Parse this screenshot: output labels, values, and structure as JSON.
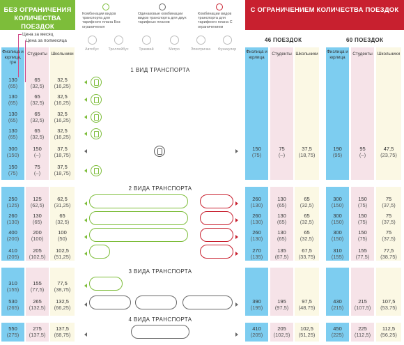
{
  "headers": {
    "unlimited": "БЕЗ ОГРАНИЧЕНИЯ КОЛИЧЕСТВА ПОЕЗДОК",
    "limited": "С ОГРАНИЧЕНИЕМ КОЛИЧЕСТВА ПОЕЗДОК"
  },
  "callouts": {
    "month": "Цена за месяц",
    "half": "Цена за полмесяца"
  },
  "legend": {
    "green": "Комбинации видов транспорта для тарифного плана Без ограничения",
    "gray": "Одинаковые комбинации видов транспорта для двух тарифных планов",
    "red": "Комбинации видов транспорта для тарифного плана С ограничением"
  },
  "modes": [
    "Автобус",
    "Троллейбус",
    "Трамвай",
    "Метро",
    "Электричка",
    "Фуникулер"
  ],
  "columns": {
    "individual": "Физлица и юрлица, грн",
    "individual_short": "Физлица и юрлица",
    "students": "Студенты",
    "pupils": "Школьники"
  },
  "trips": {
    "t46": "46 ПОЕЗДОК",
    "t60": "60 ПОЕЗДОК"
  },
  "sections": {
    "s1": "1 ВИД ТРАНСПОРТА",
    "s2": "2 ВИДА ТРАНСПОРТА",
    "s3": "3 ВИДА ТРАНСПОРТА",
    "s4": "4 ВИДА ТРАНСПОРТА"
  },
  "rows": [
    {
      "left": [
        [
          "130",
          "(65)"
        ],
        [
          "65",
          "(32,5)"
        ],
        [
          "32,5",
          "(16,25)"
        ]
      ]
    },
    {
      "left": [
        [
          "130",
          "(65)"
        ],
        [
          "65",
          "(32,5)"
        ],
        [
          "32,5",
          "(16,25)"
        ]
      ]
    },
    {
      "left": [
        [
          "130",
          "(65)"
        ],
        [
          "65",
          "(32,5)"
        ],
        [
          "32,5",
          "(16,25)"
        ]
      ]
    },
    {
      "left": [
        [
          "130",
          "(65)"
        ],
        [
          "65",
          "(32,5)"
        ],
        [
          "32,5",
          "(16,25)"
        ]
      ]
    },
    {
      "left": [
        [
          "300",
          "(150)"
        ],
        [
          "150",
          "(–)"
        ],
        [
          "37,5",
          "(18,75)"
        ]
      ],
      "r46": [
        [
          "150",
          "(75)"
        ],
        [
          "75",
          "(–)"
        ],
        [
          "37,5",
          "(18,75)"
        ]
      ],
      "r60": [
        [
          "190",
          "(95)"
        ],
        [
          "95",
          "(–)"
        ],
        [
          "47,5",
          "(23,75)"
        ]
      ]
    },
    {
      "left": [
        [
          "150",
          "(75)"
        ],
        [
          "75",
          "(–)"
        ],
        [
          "37,5",
          "(18,75)"
        ]
      ]
    },
    {
      "left": [
        [
          "250",
          "(125)"
        ],
        [
          "125",
          "(62,5)"
        ],
        [
          "62,5",
          "(31,25)"
        ]
      ],
      "r46": [
        [
          "260",
          "(130)"
        ],
        [
          "130",
          "(65)"
        ],
        [
          "65",
          "(32,5)"
        ]
      ],
      "r60": [
        [
          "300",
          "(150)"
        ],
        [
          "150",
          "(75)"
        ],
        [
          "75",
          "(37,5)"
        ]
      ]
    },
    {
      "left": [
        [
          "260",
          "(130)"
        ],
        [
          "130",
          "(65)"
        ],
        [
          "65",
          "(32,5)"
        ]
      ],
      "r46": [
        [
          "260",
          "(130)"
        ],
        [
          "130",
          "(65)"
        ],
        [
          "65",
          "(32,5)"
        ]
      ],
      "r60": [
        [
          "300",
          "(150)"
        ],
        [
          "150",
          "(75)"
        ],
        [
          "75",
          "(37,5)"
        ]
      ]
    },
    {
      "left": [
        [
          "400",
          "(200)"
        ],
        [
          "200",
          "(100)"
        ],
        [
          "100",
          "(50)"
        ]
      ],
      "r46": [
        [
          "260",
          "(130)"
        ],
        [
          "130",
          "(65)"
        ],
        [
          "65",
          "(32,5)"
        ]
      ],
      "r60": [
        [
          "300",
          "(150)"
        ],
        [
          "150",
          "(75)"
        ],
        [
          "75",
          "(37,5)"
        ]
      ]
    },
    {
      "left": [
        [
          "410",
          "(205)"
        ],
        [
          "205",
          "(102,5)"
        ],
        [
          "102,5",
          "(51,25)"
        ]
      ],
      "r46": [
        [
          "270",
          "(135)"
        ],
        [
          "135",
          "(67,5)"
        ],
        [
          "67,5",
          "(33,75)"
        ]
      ],
      "r60": [
        [
          "310",
          "(155)"
        ],
        [
          "155",
          "(77,5)"
        ],
        [
          "77,5",
          "(38,75)"
        ]
      ]
    },
    {
      "left": [
        [
          "310",
          "(155)"
        ],
        [
          "155",
          "(77,5)"
        ],
        [
          "77,5",
          "(38,75)"
        ]
      ]
    },
    {
      "left": [
        [
          "530",
          "(265)"
        ],
        [
          "265",
          "(132,5)"
        ],
        [
          "132,5",
          "(66,25)"
        ]
      ],
      "r46": [
        [
          "390",
          "(195)"
        ],
        [
          "195",
          "(97,5)"
        ],
        [
          "97,5",
          "(48,75)"
        ]
      ],
      "r60": [
        [
          "430",
          "(215)"
        ],
        [
          "215",
          "(107,5)"
        ],
        [
          "107,5",
          "(53,75)"
        ]
      ]
    },
    {
      "left": [
        [
          "550",
          "(275)"
        ],
        [
          "275",
          "(137,5)"
        ],
        [
          "137,5",
          "(68,75)"
        ]
      ],
      "r46": [
        [
          "410",
          "(205)"
        ],
        [
          "205",
          "(102,5)"
        ],
        [
          "102,5",
          "(51,25)"
        ]
      ],
      "r60": [
        [
          "450",
          "(225)"
        ],
        [
          "225",
          "(112,5)"
        ],
        [
          "112,5",
          "(56,25)"
        ]
      ]
    }
  ],
  "colors": {
    "green": "#7dbd3a",
    "red": "#c8202f",
    "blue": "#7dcdf0",
    "pink": "#f6e3e8",
    "cream": "#fbf8e4"
  }
}
